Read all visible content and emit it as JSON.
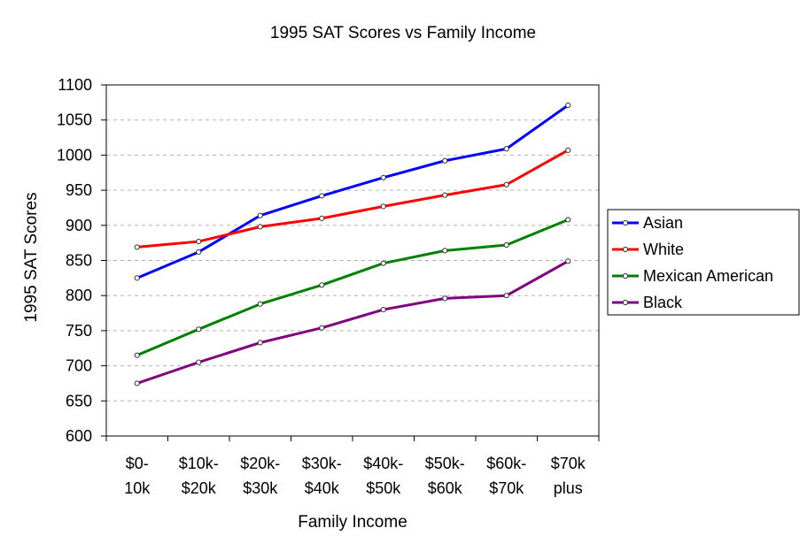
{
  "chart_data": {
    "type": "line",
    "title": "1995 SAT Scores vs Family Income",
    "xlabel": "Family Income",
    "ylabel": "1995 SAT Scores",
    "ylim": [
      600,
      1100
    ],
    "yticks": [
      600,
      650,
      700,
      750,
      800,
      850,
      900,
      950,
      1000,
      1050,
      1100
    ],
    "grid": true,
    "legend_position": "right",
    "categories": [
      [
        "$0-",
        "10k"
      ],
      [
        "$10k-",
        "$20k"
      ],
      [
        "$20k-",
        "$30k"
      ],
      [
        "$30k-",
        "$40k"
      ],
      [
        "$40k-",
        "$50k"
      ],
      [
        "$50k-",
        "$60k"
      ],
      [
        "$60k-",
        "$70k"
      ],
      [
        "$70k",
        "plus"
      ]
    ],
    "series": [
      {
        "name": "Asian",
        "color": "#0000ff",
        "values": [
          825,
          862,
          914,
          942,
          968,
          992,
          1009,
          1071
        ]
      },
      {
        "name": "White",
        "color": "#ff0000",
        "values": [
          869,
          877,
          898,
          910,
          927,
          943,
          958,
          1007
        ]
      },
      {
        "name": "Mexican American",
        "color": "#008000",
        "values": [
          715,
          752,
          788,
          815,
          846,
          864,
          872,
          908
        ]
      },
      {
        "name": "Black",
        "color": "#800080",
        "values": [
          675,
          705,
          733,
          754,
          780,
          796,
          800,
          849
        ]
      }
    ]
  }
}
